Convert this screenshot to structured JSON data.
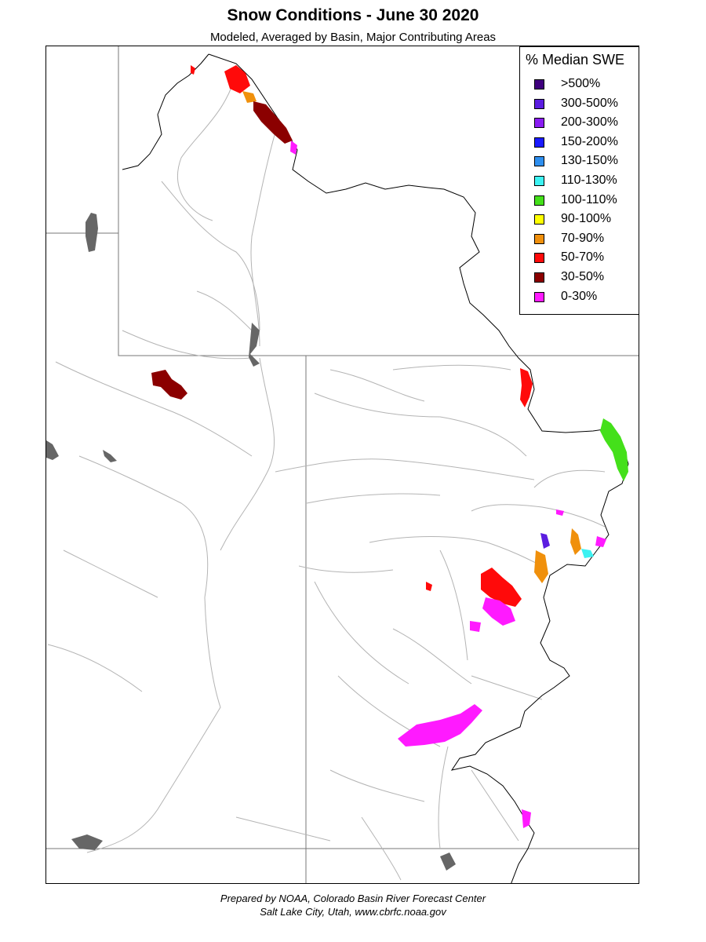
{
  "header": {
    "title": "Snow Conditions - June 30 2020",
    "subtitle": "Modeled, Averaged by Basin, Major Contributing Areas"
  },
  "legend": {
    "title": "% Median SWE",
    "items": [
      {
        "label": ">500%",
        "color": "#3f007d"
      },
      {
        "label": "300-500%",
        "color": "#5b1de0"
      },
      {
        "label": "200-300%",
        "color": "#8a1cf2"
      },
      {
        "label": "150-200%",
        "color": "#1a1aff"
      },
      {
        "label": "130-150%",
        "color": "#2e8fef"
      },
      {
        "label": "110-130%",
        "color": "#3cf2f2"
      },
      {
        "label": "100-110%",
        "color": "#44e01a"
      },
      {
        "label": "90-100%",
        "color": "#ffff00"
      },
      {
        "label": "70-90%",
        "color": "#f0900c"
      },
      {
        "label": "50-70%",
        "color": "#ff0a0a"
      },
      {
        "label": "30-50%",
        "color": "#8b0000"
      },
      {
        "label": "0-30%",
        "color": "#ff1aff"
      }
    ]
  },
  "map": {
    "colors": {
      "boundary": "#000000",
      "state_line": "#777777",
      "river": "#b4b4b4",
      "lake": "#666666"
    }
  },
  "footer": {
    "line1": "Prepared by NOAA, Colorado Basin River Forecast Center",
    "line2": "Salt Lake City, Utah, www.cbrfc.noaa.gov"
  }
}
